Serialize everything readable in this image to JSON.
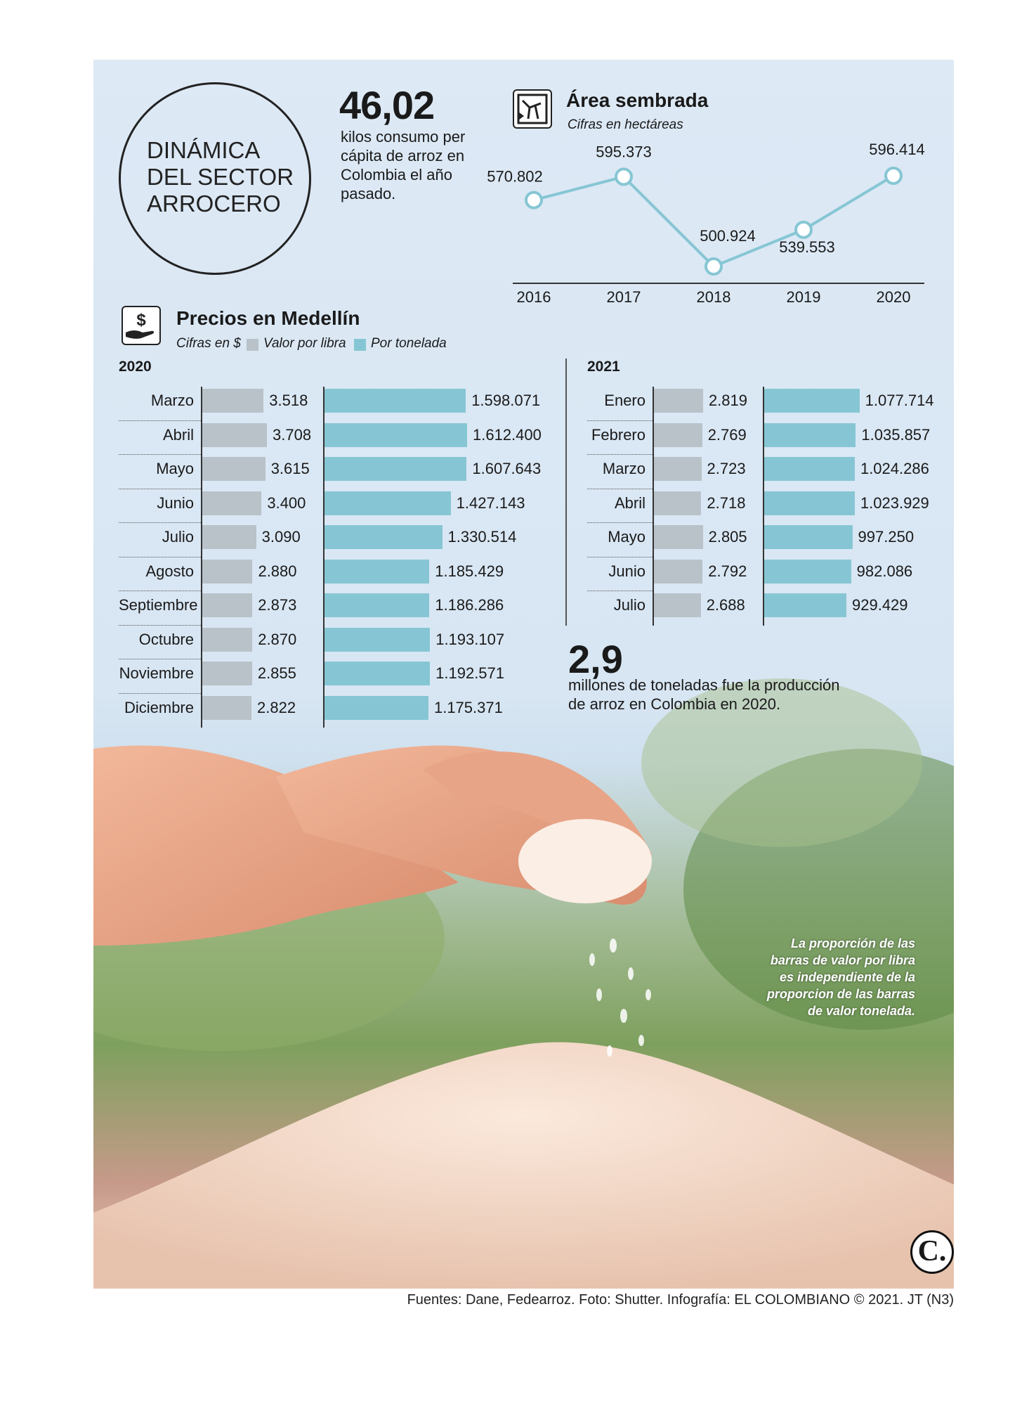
{
  "header": {
    "title": "DINÁMICA\nDEL SECTOR\nARROCERO",
    "stat1_value": "46,02",
    "stat1_text": "kilos consumo per cápita de arroz en Colombia el año pasado."
  },
  "area": {
    "title": "Área sembrada",
    "subtitle": "Cifras en hectáreas",
    "icon": "map-field-icon"
  },
  "precios": {
    "title": "Precios en Medellín",
    "subtitle": "Cifras en $",
    "legend_libra": "Valor por libra",
    "legend_tonelada": "Por tonelada",
    "icon": "hand-money-icon",
    "color_libra": "#b8c2c8",
    "color_tonelada": "#86c6d4"
  },
  "stat2": {
    "value": "2,9",
    "text": "millones de toneladas fue la producción de arroz en Colombia en 2020."
  },
  "note": "La proporción de las barras de valor por libra es independiente de la proporcion de las barras de valor tonelada.",
  "credits": "Fuentes: Dane, Fedearroz. Foto: Shutter. Infografía: EL COLOMBIANO © 2021. JT (N3)",
  "logo": "C.",
  "chart_data": [
    {
      "type": "line",
      "title": "Área sembrada",
      "subtitle": "Cifras en hectáreas",
      "x": [
        "2016",
        "2017",
        "2018",
        "2019",
        "2020"
      ],
      "values": [
        570802,
        595373,
        500924,
        539553,
        596414
      ],
      "labels": [
        "570.802",
        "595.373",
        "500.924",
        "539.553",
        "596.414"
      ],
      "color": "#86c6d4"
    },
    {
      "type": "bar",
      "title": "2020",
      "categories": [
        "Marzo",
        "Abril",
        "Mayo",
        "Junio",
        "Julio",
        "Agosto",
        "Septiembre",
        "Octubre",
        "Noviembre",
        "Diciembre"
      ],
      "series": [
        {
          "name": "Valor por libra",
          "values": [
            3518,
            3708,
            3615,
            3400,
            3090,
            2880,
            2873,
            2870,
            2855,
            2822
          ],
          "labels": [
            "3.518",
            "3.708",
            "3.615",
            "3.400",
            "3.090",
            "2.880",
            "2.873",
            "2.870",
            "2.855",
            "2.822"
          ]
        },
        {
          "name": "Por tonelada",
          "values": [
            1598071,
            1612400,
            1607643,
            1427143,
            1330514,
            1185429,
            1186286,
            1193107,
            1192571,
            1175371
          ],
          "labels": [
            "1.598.071",
            "1.612.400",
            "1.607.643",
            "1.427.143",
            "1.330.514",
            "1.185.429",
            "1.186.286",
            "1.193.107",
            "1.192.571",
            "1.175.371"
          ]
        }
      ]
    },
    {
      "type": "bar",
      "title": "2021",
      "categories": [
        "Enero",
        "Febrero",
        "Marzo",
        "Abril",
        "Mayo",
        "Junio",
        "Julio"
      ],
      "series": [
        {
          "name": "Valor por libra",
          "values": [
            2819,
            2769,
            2723,
            2718,
            2805,
            2792,
            2688
          ],
          "labels": [
            "2.819",
            "2.769",
            "2.723",
            "2.718",
            "2.805",
            "2.792",
            "2.688"
          ]
        },
        {
          "name": "Por tonelada",
          "values": [
            1077714,
            1035857,
            1024286,
            1023929,
            997250,
            982086,
            929429
          ],
          "labels": [
            "1.077.714",
            "1.035.857",
            "1.024.286",
            "1.023.929",
            "997.250",
            "982.086",
            "929.429"
          ]
        }
      ]
    }
  ]
}
